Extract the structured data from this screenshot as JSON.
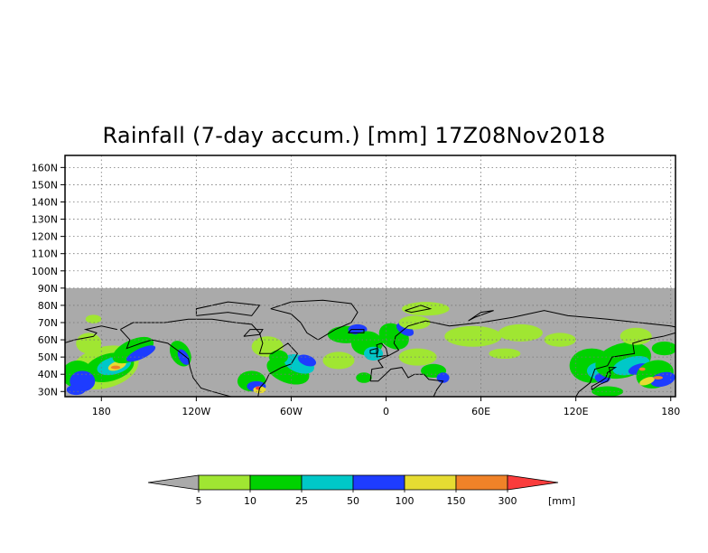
{
  "title": "Rainfall (7-day accum.) [mm] 17Z08Nov2018",
  "map": {
    "variable": "7-day accumulated rainfall",
    "lat_range": [
      27,
      167
    ],
    "lon_range": [
      -203,
      183
    ],
    "data_extent_lat": [
      27,
      90
    ],
    "grid": "dotted",
    "lat_ticks": [
      "160N",
      "150N",
      "140N",
      "130N",
      "120N",
      "110N",
      "100N",
      "90N",
      "80N",
      "70N",
      "60N",
      "50N",
      "40N",
      "30N"
    ],
    "lat_values": [
      160,
      150,
      140,
      130,
      120,
      110,
      100,
      90,
      80,
      70,
      60,
      50,
      40,
      30
    ],
    "lon_ticks": [
      "180",
      "120W",
      "60W",
      "0",
      "60E",
      "120E",
      "180"
    ],
    "lon_values": [
      -180,
      -120,
      -60,
      0,
      60,
      120,
      180
    ],
    "background_color": "#aaaaaa"
  },
  "legend": {
    "labels": [
      "5",
      "10",
      "25",
      "50",
      "100",
      "150",
      "300"
    ],
    "unit": "[mm]",
    "colors": [
      "#aaaaaa",
      "#a0e632",
      "#00d200",
      "#00c8c8",
      "#1e3cff",
      "#e6dc32",
      "#f08228",
      "#fa3c3c"
    ]
  }
}
